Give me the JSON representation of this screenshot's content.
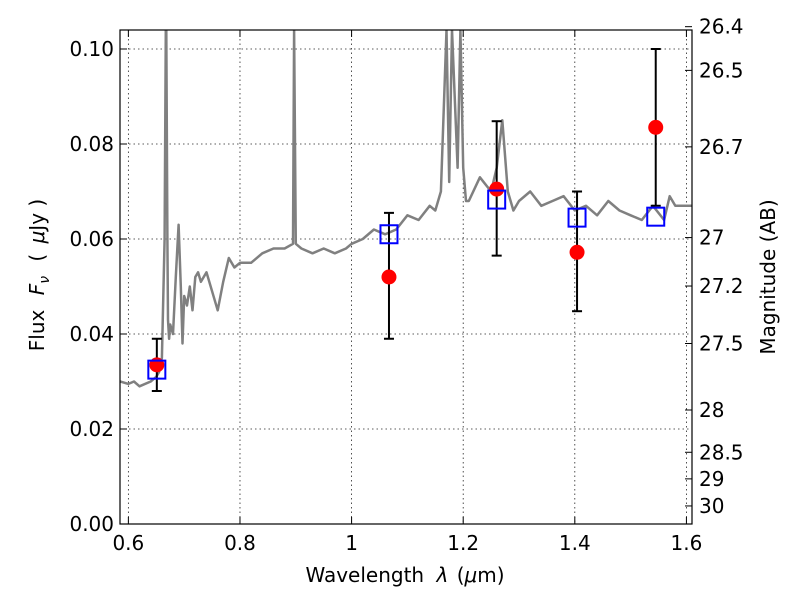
{
  "chart_data": {
    "type": "scatter",
    "xlabel_text": "Wavelength",
    "xlabel_symbol": "λ",
    "xlabel_unit_open": "(",
    "xlabel_unit_mu": "μ",
    "xlabel_unit_rest": "m)",
    "ylabel_text": "Flux",
    "ylabel_symbol": "F",
    "ylabel_subscript": "ν",
    "ylabel_unit_open": "(",
    "ylabel_unit_mu": "μ",
    "ylabel_unit_rest": "Jy )",
    "y2label": "Magnitude (AB)",
    "xlim": [
      0.585,
      1.61
    ],
    "ylim": [
      0.0,
      0.104
    ],
    "grid": true,
    "x_ticks": [
      0.6,
      0.8,
      1.0,
      1.2,
      1.4,
      1.6
    ],
    "x_tick_labels": [
      "0.6",
      "0.8",
      "1",
      "1.2",
      "1.4",
      "1.6"
    ],
    "y_ticks": [
      0.0,
      0.02,
      0.04,
      0.06,
      0.08,
      0.1
    ],
    "y_tick_labels": [
      "0.00",
      "0.02",
      "0.04",
      "0.06",
      "0.08",
      "0.10"
    ],
    "mag_ticks": [
      {
        "label": "26.4",
        "flux": 0.1047
      },
      {
        "label": "26.5",
        "flux": 0.0955
      },
      {
        "label": "26.7",
        "flux": 0.0794
      },
      {
        "label": "27",
        "flux": 0.0603
      },
      {
        "label": "27.2",
        "flux": 0.0501
      },
      {
        "label": "27.5",
        "flux": 0.038
      },
      {
        "label": "28",
        "flux": 0.024
      },
      {
        "label": "28.5",
        "flux": 0.0151
      },
      {
        "label": "29",
        "flux": 0.0095
      },
      {
        "label": "30",
        "flux": 0.0038
      }
    ],
    "series": [
      {
        "type": "line",
        "color": "#808080",
        "x": [
          0.585,
          0.6,
          0.61,
          0.62,
          0.64,
          0.65,
          0.655,
          0.66,
          0.665,
          0.667,
          0.668,
          0.67,
          0.671,
          0.673,
          0.675,
          0.68,
          0.685,
          0.69,
          0.694,
          0.697,
          0.7,
          0.705,
          0.71,
          0.715,
          0.72,
          0.725,
          0.73,
          0.74,
          0.75,
          0.76,
          0.77,
          0.78,
          0.79,
          0.8,
          0.82,
          0.84,
          0.86,
          0.88,
          0.895,
          0.897,
          0.9,
          0.91,
          0.93,
          0.95,
          0.97,
          0.99,
          1.0,
          1.02,
          1.04,
          1.06,
          1.08,
          1.1,
          1.12,
          1.14,
          1.15,
          1.16,
          1.17,
          1.175,
          1.18,
          1.19,
          1.195,
          1.2,
          1.205,
          1.21,
          1.23,
          1.25,
          1.26,
          1.27,
          1.28,
          1.29,
          1.3,
          1.32,
          1.34,
          1.36,
          1.38,
          1.4,
          1.42,
          1.44,
          1.46,
          1.48,
          1.5,
          1.52,
          1.54,
          1.56,
          1.57,
          1.58,
          1.6,
          1.61
        ],
        "y": [
          0.03,
          0.0295,
          0.03,
          0.029,
          0.03,
          0.031,
          0.032,
          0.035,
          0.06,
          0.104,
          0.104,
          0.06,
          0.043,
          0.039,
          0.042,
          0.04,
          0.052,
          0.063,
          0.05,
          0.038,
          0.048,
          0.046,
          0.05,
          0.045,
          0.052,
          0.053,
          0.051,
          0.053,
          0.049,
          0.045,
          0.051,
          0.056,
          0.054,
          0.055,
          0.055,
          0.057,
          0.058,
          0.058,
          0.059,
          0.104,
          0.059,
          0.058,
          0.057,
          0.058,
          0.057,
          0.058,
          0.059,
          0.06,
          0.062,
          0.061,
          0.062,
          0.065,
          0.064,
          0.067,
          0.066,
          0.07,
          0.104,
          0.072,
          0.104,
          0.075,
          0.104,
          0.075,
          0.068,
          0.068,
          0.073,
          0.07,
          0.075,
          0.085,
          0.07,
          0.066,
          0.068,
          0.07,
          0.067,
          0.068,
          0.069,
          0.066,
          0.067,
          0.065,
          0.068,
          0.066,
          0.065,
          0.064,
          0.067,
          0.064,
          0.069,
          0.067,
          0.067,
          0.067
        ]
      },
      {
        "type": "scatter",
        "marker": "circle",
        "color": "#ff0000",
        "x": [
          0.651,
          1.067,
          1.26,
          1.404,
          1.545
        ],
        "y": [
          0.0335,
          0.052,
          0.0705,
          0.0572,
          0.0835
        ],
        "yerr_low": [
          0.028,
          0.039,
          0.0565,
          0.0448,
          0.067
        ],
        "yerr_high": [
          0.039,
          0.0655,
          0.0848,
          0.07,
          0.1
        ]
      },
      {
        "type": "scatter",
        "marker": "open-square",
        "color": "#0000ff",
        "x": [
          0.651,
          1.067,
          1.26,
          1.404,
          1.545
        ],
        "y": [
          0.0325,
          0.061,
          0.0683,
          0.0645,
          0.0647
        ]
      }
    ]
  }
}
